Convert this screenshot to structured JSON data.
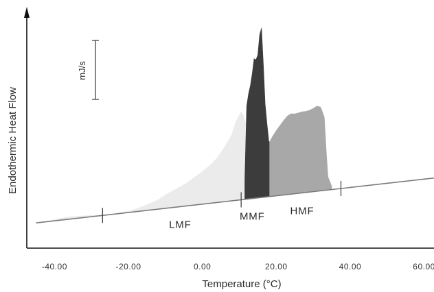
{
  "chart_data": {
    "type": "area",
    "xlabel": "Temperature (°C)",
    "ylabel": "Endothermic Heat Flow",
    "xlim": [
      -47,
      68
    ],
    "x_ticks": [
      {
        "value": -40,
        "label": "-40.00"
      },
      {
        "value": -20,
        "label": "-20.00"
      },
      {
        "value": 0,
        "label": "0.00"
      },
      {
        "value": 20,
        "label": "20.00"
      },
      {
        "value": 40,
        "label": "40.00"
      },
      {
        "value": 60,
        "label": "60.00"
      }
    ],
    "scale_bar_label": "mJ/s",
    "baseline": {
      "x_start": -45,
      "x_end": 68
    },
    "fraction_dividers": [
      -27,
      10.5,
      37.5
    ],
    "fractions": [
      {
        "label": "LMF",
        "label_x": -6,
        "color": "#ebebeb",
        "x": [
          -45,
          -42,
          -40,
          -38,
          -36,
          -34,
          -32,
          -30,
          -28,
          -26,
          -24,
          -22,
          -20,
          -18,
          -16,
          -14,
          -12,
          -10,
          -8,
          -6,
          -4,
          -2,
          0,
          2,
          4,
          6,
          8,
          9,
          10,
          10.5,
          11,
          12,
          12
        ],
        "height": [
          0.0,
          0.5,
          2.0,
          3.0,
          3.5,
          3.0,
          2.5,
          2.0,
          0.5,
          0.0,
          0.0,
          1.0,
          2.0,
          4.0,
          7.0,
          10.0,
          14.0,
          20.0,
          25.0,
          30.0,
          35.0,
          42.0,
          49.0,
          57.0,
          67.0,
          82.0,
          100.0,
          117.0,
          128.0,
          132.0,
          128.0,
          110.0,
          0.0
        ]
      },
      {
        "label": "MMF",
        "label_x": 13.5,
        "color": "#3c3c3c",
        "x": [
          11.5,
          12,
          12.5,
          13,
          13.5,
          14,
          14.5,
          15,
          15.5,
          16,
          16.5,
          17,
          17.5,
          18,
          18.2,
          18.2,
          11.5
        ],
        "height": [
          30.0,
          140.0,
          158.0,
          170.0,
          188.0,
          210.0,
          208.0,
          215.0,
          245.0,
          255.0,
          200.0,
          140.0,
          110.0,
          83.0,
          82.0,
          0.0,
          0.0
        ]
      },
      {
        "label": "HMF",
        "label_x": 27,
        "color": "#a8a8a8",
        "x": [
          18.2,
          19,
          20,
          21,
          22,
          23,
          24,
          25,
          26,
          27,
          28,
          29,
          30,
          31,
          32,
          33,
          33.5,
          34,
          35,
          35,
          18.2
        ],
        "height": [
          82.0,
          90.0,
          98.0,
          105.0,
          112.0,
          118.0,
          121.0,
          120.0,
          121.0,
          122.0,
          122.0,
          123.0,
          125.0,
          128.0,
          126.0,
          110.0,
          60.0,
          20.0,
          5.0,
          0.0,
          0.0
        ]
      }
    ]
  }
}
